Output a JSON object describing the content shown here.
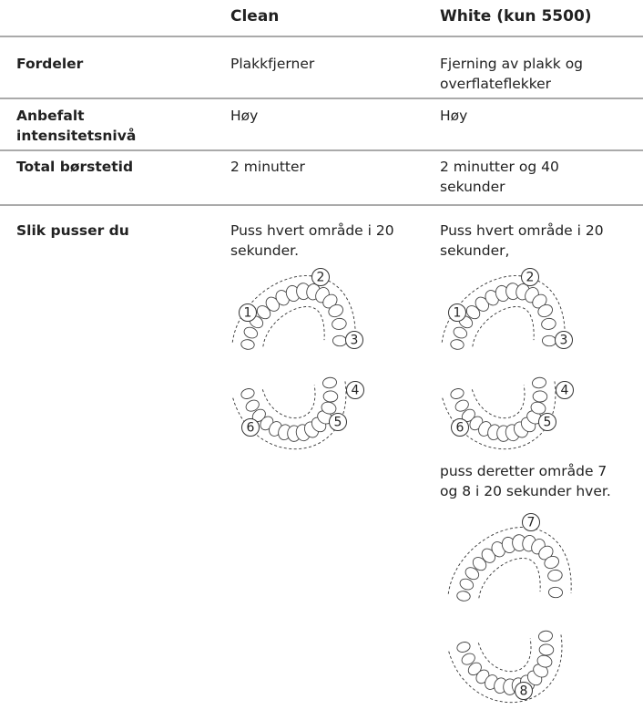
{
  "table": {
    "columns": [
      "Clean",
      "White (kun 5500)"
    ],
    "rows": [
      {
        "label": [
          "Fordeler"
        ],
        "cells": [
          [
            "Plakkfjerner"
          ],
          [
            "Fjerning av plakk og",
            "overflateflekker"
          ]
        ]
      },
      {
        "label": [
          "Anbefalt",
          "intensitetsnivå"
        ],
        "cells": [
          [
            "Høy"
          ],
          [
            "Høy"
          ]
        ]
      },
      {
        "label": [
          "Total børstetid"
        ],
        "cells": [
          [
            "2 minutter"
          ],
          [
            "2 minutter og 40",
            "sekunder"
          ]
        ]
      }
    ],
    "brushing": {
      "label": "Slik pusser du",
      "clean": {
        "text": [
          "Puss hvert område i 20",
          "sekunder."
        ],
        "zones": [
          "1",
          "2",
          "3",
          "4",
          "5",
          "6"
        ]
      },
      "white": {
        "text": [
          "Puss hvert område i 20",
          "sekunder,"
        ],
        "zones": [
          "1",
          "2",
          "3",
          "4",
          "5",
          "6"
        ],
        "text2": [
          "puss deretter område 7",
          "og 8 i 20 sekunder hver."
        ],
        "zones2": [
          "7",
          "8"
        ]
      }
    }
  }
}
